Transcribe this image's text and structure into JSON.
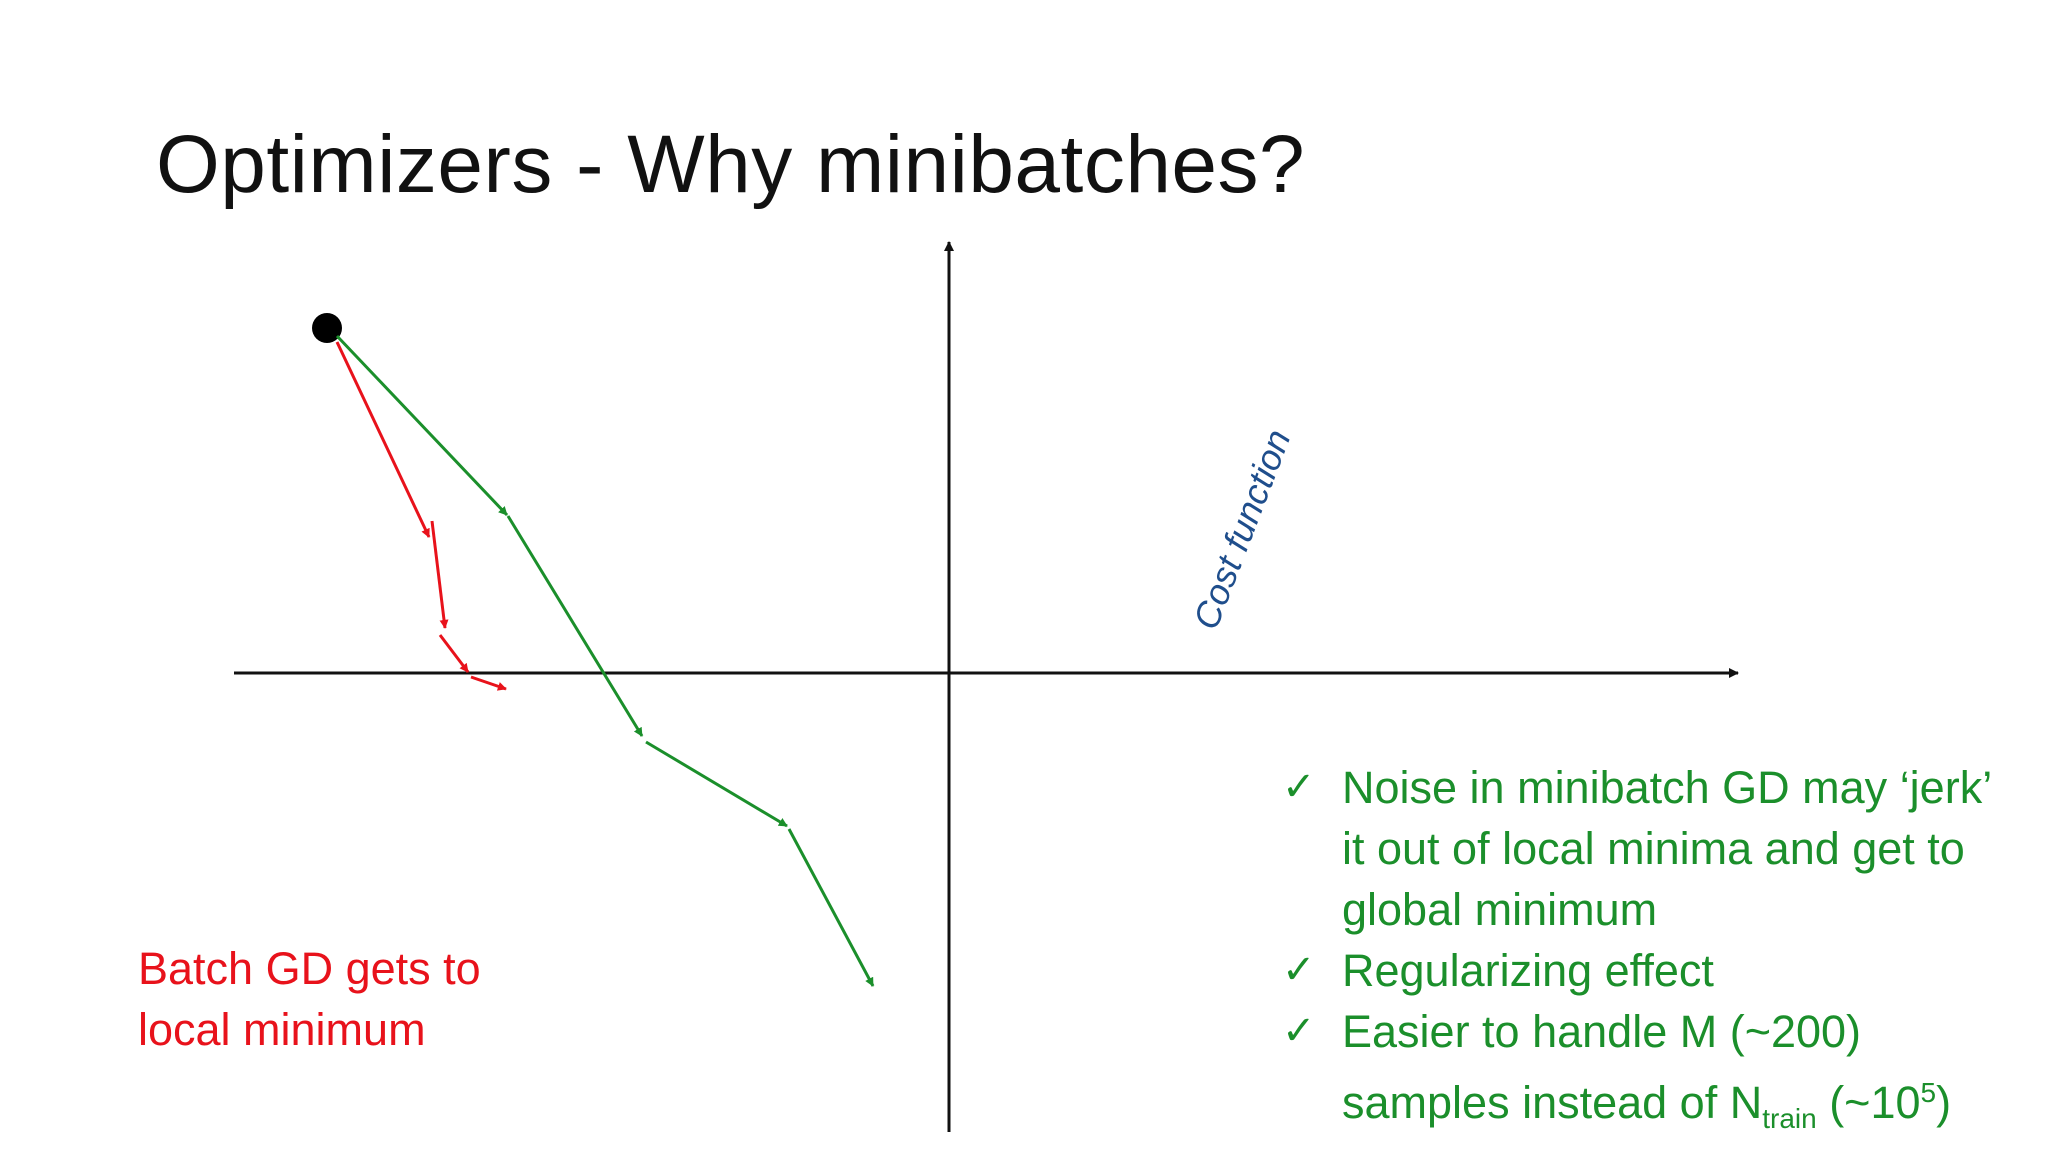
{
  "slide": {
    "title": "Optimizers - Why minibatches?",
    "axis_label": "Cost function",
    "batch_note": "Batch GD gets to local minimum",
    "benefits": [
      {
        "icon": "checkmark-icon",
        "text": "Noise in minibatch GD may ‘jerk’ it out of local minima and get to global minimum"
      },
      {
        "icon": "checkmark-icon",
        "text": "Regularizing effect"
      },
      {
        "icon": "checkmark-icon",
        "text_before": "Easier to handle M (~200) samples instead of N",
        "subscript": "train",
        "text_middle": " (~10",
        "superscript": "5",
        "text_after": ")"
      }
    ]
  },
  "colors": {
    "batch_path": "#e8121b",
    "minibatch_path": "#1b8f2b",
    "axis_label": "#1f4e8c",
    "axes": "#111111"
  },
  "check_glyph": "✓"
}
